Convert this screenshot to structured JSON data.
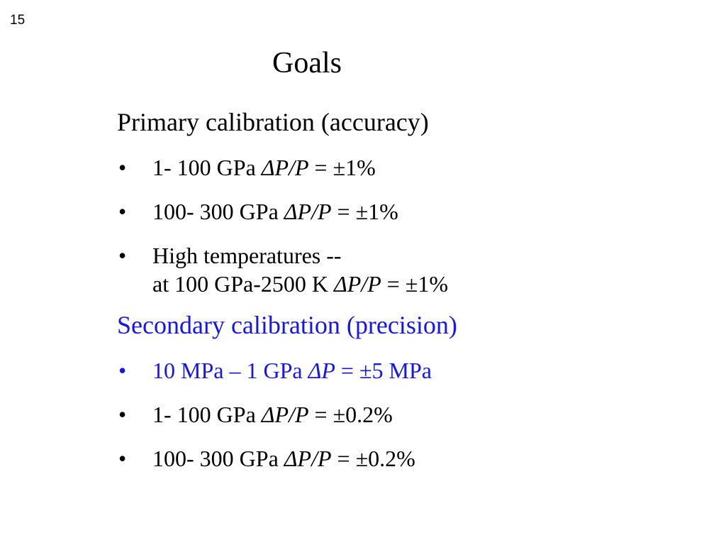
{
  "slide_number": "15",
  "title": "Goals",
  "accent_color": "#1515ee",
  "primary": {
    "heading": "Primary calibration (accuracy)",
    "items": [
      {
        "bullet": "•",
        "text": "1- 100 GPa ",
        "var": "ΔP/P",
        "value": " = ±1%"
      },
      {
        "bullet": "•",
        "text": "100- 300 GPa ",
        "var": "ΔP/P",
        "value": " = ±1%"
      },
      {
        "bullet": "•",
        "line1": "High temperatures --",
        "text": "at 100 GPa-2500 K ",
        "var": "ΔP/P",
        "value": " = ±1%"
      }
    ]
  },
  "secondary": {
    "heading": "Secondary calibration (precision)",
    "items": [
      {
        "bullet": "•",
        "text": "10 MPa – 1 GPa ",
        "var": "ΔP",
        "value": " = ±5 MPa"
      },
      {
        "bullet": "•",
        "text": "1- 100 GPa ",
        "var": "ΔP/P",
        "value": " = ±0.2%"
      },
      {
        "bullet": "•",
        "text": "100- 300 GPa ",
        "var": "ΔP/P",
        "value": " = ±0.2%"
      }
    ]
  }
}
